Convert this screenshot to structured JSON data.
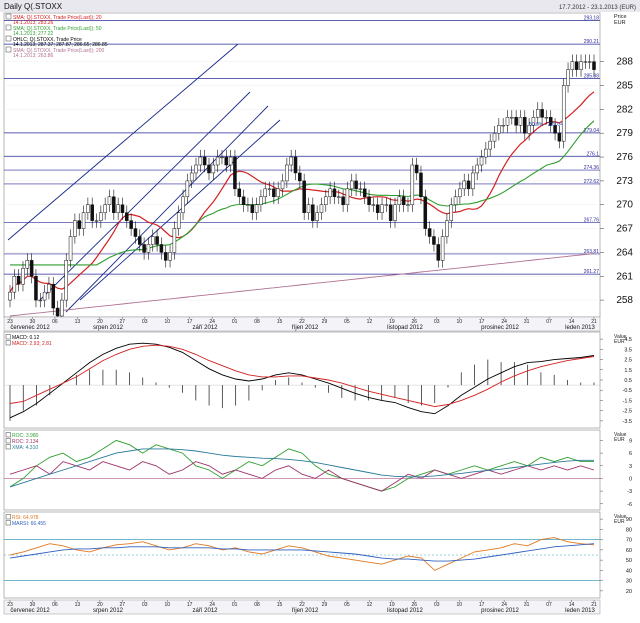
{
  "header": {
    "title": "Daily Q(.STOXX",
    "range": "17.7.2012 - 23.1.2013 (EUR)"
  },
  "main": {
    "legend": [
      {
        "line1": "SMA; Q(.STOXX, Trade Price(Last)); 20",
        "line2": "14.1.2013; 283.26",
        "color": "#d42020"
      },
      {
        "line1": "SMA; Q(.STOXX, Trade Price(Last)); 50",
        "line2": "14.1.2013; 277.22",
        "color": "#2f9e2f"
      },
      {
        "line1": "OHLC; Q(.STOXX, Trade Price",
        "line2": "14.1.2013; 287.37; 287.87; 286.65; 286.85",
        "color": "#000000"
      },
      {
        "line1": "SMA; Q(.STOXX, Trade Price(Last)); 200",
        "line2": "14.1.2013; 263.86",
        "color": "#b07090"
      }
    ],
    "unit_label": "Price",
    "unit_currency": "EUR",
    "y_ticks": [
      "288",
      "285",
      "282",
      "279",
      "276",
      "273",
      "270",
      "267",
      "264",
      "261",
      "258"
    ],
    "hlines": [
      {
        "label": "293.18",
        "value": 293.18
      },
      {
        "label": "290.21",
        "value": 290.21
      },
      {
        "label": "285.88",
        "value": 285.88
      },
      {
        "label": "279.04",
        "value": 279.04
      },
      {
        "label": "276.1",
        "value": 276.1
      },
      {
        "label": "274.36",
        "value": 274.36
      },
      {
        "label": "272.62",
        "value": 272.62
      },
      {
        "label": "267.76",
        "value": 267.76
      },
      {
        "label": "263.81",
        "value": 263.81
      },
      {
        "label": "261.27",
        "value": 261.27
      }
    ],
    "fib_label": "50.0% - 279.04",
    "day_ticks": [
      "23",
      "30",
      "06",
      "13",
      "20",
      "27",
      "03",
      "10",
      "17",
      "24",
      "01",
      "08",
      "15",
      "22",
      "29",
      "05",
      "12",
      "19",
      "26",
      "03",
      "10",
      "17",
      "24",
      "31",
      "07",
      "14",
      "21"
    ],
    "months": [
      "červenec 2012",
      "srpen 2012",
      "září 2012",
      "říjen 2012",
      "listopad 2012",
      "prosinec 2012",
      "leden 2013"
    ]
  },
  "macd_panel": {
    "legend": [
      {
        "label": "MACD: 0.12",
        "color": "#000000"
      },
      {
        "label": "MACD: 2.93; 2.81",
        "color": "#d42020"
      }
    ],
    "unit_label": "Value",
    "unit_currency": "EUR",
    "y_ticks": [
      "4.5",
      "3.5",
      "2.5",
      "1.5",
      "0.5",
      "-0.5",
      "-1.5",
      "-2.5",
      "-3.5"
    ]
  },
  "roc_panel": {
    "legend": [
      {
        "label": "ROC: 3.980",
        "color": "#2f9e2f"
      },
      {
        "label": "ROC: 2.134",
        "color": "#a0306a"
      },
      {
        "label": "XMA: 4.310",
        "color": "#2a7a9a"
      }
    ],
    "unit_label": "Value",
    "unit_currency": "EUR",
    "y_ticks": [
      "9",
      "6",
      "3",
      "0",
      "-3",
      "-6"
    ]
  },
  "rsi_panel": {
    "legend": [
      {
        "label": "RSI: 64.978",
        "color": "#e07820"
      },
      {
        "label": "MARSI: 66.455",
        "color": "#3060c0"
      }
    ],
    "unit_label": "Value",
    "unit_currency": "EUR",
    "y_ticks": [
      "90",
      "80",
      "70",
      "60",
      "50",
      "40",
      "30",
      "20"
    ]
  },
  "chart_data": {
    "type": "candlestick",
    "title": "Daily Q(.STOXX",
    "ylim": [
      256,
      294
    ],
    "date_range": "17.7.2012 - 23.1.2013",
    "months": [
      "červenec 2012",
      "srpen 2012",
      "září 2012",
      "říjen 2012",
      "listopad 2012",
      "prosinec 2012",
      "leden 2013"
    ],
    "close": [
      259,
      261,
      260,
      262,
      263,
      261,
      258,
      258,
      259,
      260,
      257,
      256,
      258,
      263,
      266,
      268,
      267,
      269,
      270,
      268,
      268,
      269,
      270,
      271,
      269,
      270,
      269,
      268,
      267,
      266,
      265,
      264,
      265,
      266,
      265,
      264,
      263,
      264,
      267,
      269,
      271,
      273,
      274,
      275,
      276,
      275,
      274,
      275,
      276,
      276,
      275,
      276,
      272,
      271,
      270,
      270,
      269,
      270,
      271,
      272,
      272,
      271,
      272,
      273,
      275,
      276,
      274,
      273,
      269,
      270,
      268,
      269,
      270,
      271,
      272,
      271,
      271,
      270,
      272,
      273,
      272,
      272,
      271,
      270,
      270,
      269,
      270,
      270,
      268,
      270,
      271,
      270,
      270,
      275,
      274,
      271,
      267,
      266,
      265,
      263,
      266,
      268,
      270,
      271,
      272,
      273,
      272,
      274,
      275,
      276,
      277,
      278,
      279,
      280,
      280,
      281,
      281,
      280,
      281,
      279,
      280,
      281,
      282,
      281,
      281,
      280,
      279,
      278,
      285,
      287,
      288,
      287,
      288,
      288,
      288,
      287
    ],
    "panels": [
      {
        "name": "MACD",
        "series": [
          {
            "name": "MACD: 0.12",
            "values": [
              -3.2,
              -2.6,
              -1.8,
              -0.8,
              0.2,
              1.2,
              2.2,
              3.0,
              3.6,
              4.0,
              4.1,
              4.0,
              3.7,
              3.2,
              2.4,
              1.6,
              1.0,
              0.6,
              0.4,
              0.6,
              1.0,
              1.2,
              1.0,
              0.6,
              0.2,
              -0.3,
              -0.8,
              -1.2,
              -1.5,
              -1.7,
              -2.2,
              -2.6,
              -2.8,
              -2.0,
              -1.0,
              -0.2,
              0.6,
              1.2,
              1.8,
              2.2,
              2.3,
              2.5,
              2.6,
              2.7,
              2.9
            ]
          },
          {
            "name": "MACD: 2.93; 2.81",
            "values": [
              -1.8,
              -1.6,
              -1.0,
              -0.4,
              0.2,
              0.8,
              1.6,
              2.4,
              3.0,
              3.5,
              3.8,
              3.9,
              3.8,
              3.5,
              3.0,
              2.4,
              1.9,
              1.4,
              1.0,
              0.8,
              0.8,
              0.9,
              0.9,
              0.7,
              0.5,
              0.2,
              -0.2,
              -0.6,
              -0.9,
              -1.2,
              -1.5,
              -1.8,
              -2.1,
              -1.9,
              -1.5,
              -1.0,
              -0.4,
              0.3,
              0.9,
              1.4,
              1.8,
              2.1,
              2.4,
              2.6,
              2.8
            ]
          }
        ]
      },
      {
        "name": "ROC",
        "series": [
          {
            "name": "ROC: 3.980",
            "values": [
              -2,
              0,
              3,
              5,
              6,
              4,
              5,
              7,
              9,
              8,
              6,
              8,
              7,
              6,
              3,
              2,
              0,
              2,
              4,
              3,
              5,
              7,
              6,
              3,
              1,
              0,
              -1,
              -2,
              -3,
              -2,
              0,
              1,
              2,
              1,
              2,
              3,
              2,
              3,
              4,
              3,
              5,
              4,
              5,
              4,
              4
            ]
          },
          {
            "name": "ROC: 2.134",
            "values": [
              1,
              2,
              3,
              1,
              4,
              3,
              2,
              4,
              3,
              2,
              4,
              3,
              1,
              2,
              4,
              3,
              1,
              2,
              1,
              0,
              2,
              3,
              1,
              0,
              2,
              0,
              -1,
              -2,
              -3,
              -1,
              1,
              0,
              2,
              1,
              0,
              1,
              2,
              1,
              2,
              3,
              2,
              3,
              2,
              3,
              2
            ]
          },
          {
            "name": "XMA: 4.310",
            "values": [
              -2,
              -1,
              0,
              1,
              2,
              3,
              4,
              5,
              6,
              6.5,
              7,
              7,
              7,
              6.8,
              6.5,
              6,
              5.5,
              5.2,
              5,
              4.8,
              4.7,
              4.5,
              4.2,
              3.8,
              3.2,
              2.6,
              2,
              1.4,
              0.8,
              0.5,
              0.4,
              0.4,
              0.6,
              0.9,
              1.2,
              1.6,
              1.9,
              2.2,
              2.6,
              3,
              3.4,
              3.8,
              4.1,
              4.3,
              4.3
            ]
          }
        ]
      },
      {
        "name": "RSI",
        "series": [
          {
            "name": "RSI: 64.978",
            "values": [
              55,
              58,
              62,
              66,
              64,
              60,
              58,
              62,
              65,
              66,
              68,
              64,
              60,
              62,
              66,
              64,
              60,
              62,
              58,
              56,
              60,
              64,
              62,
              58,
              54,
              52,
              50,
              48,
              46,
              50,
              54,
              52,
              40,
              46,
              52,
              58,
              60,
              62,
              66,
              64,
              70,
              72,
              68,
              66,
              65
            ]
          },
          {
            "name": "MARSI: 66.455",
            "values": [
              52,
              54,
              56,
              58,
              60,
              61,
              61,
              62,
              62,
              63,
              63,
              63,
              62,
              62,
              62,
              62,
              61,
              61,
              60,
              60,
              60,
              60,
              60,
              59,
              58,
              57,
              56,
              54,
              52,
              51,
              51,
              50,
              49,
              49,
              50,
              51,
              53,
              55,
              57,
              59,
              61,
              63,
              64,
              65,
              66
            ]
          }
        ]
      }
    ]
  }
}
